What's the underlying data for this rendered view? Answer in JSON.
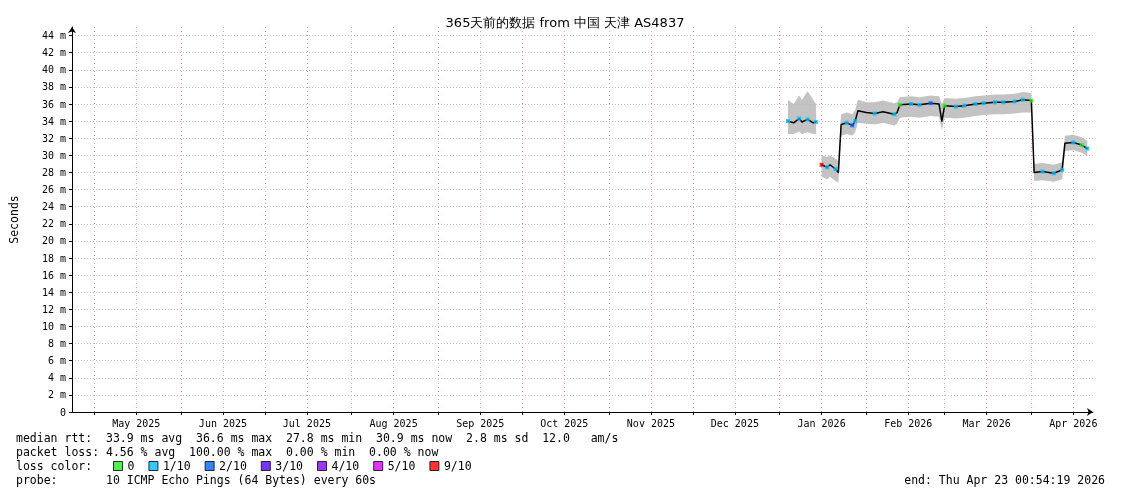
{
  "chart_data": {
    "type": "line",
    "title": "365天前的数据 from 中国 天津 AS4837",
    "ylabel": "Seconds",
    "xlim": [
      "2025-04-23T00:54",
      "2026-04-23T00:54"
    ],
    "xticks": [
      {
        "value": "2025-05-01",
        "label": null
      },
      {
        "value": "2025-05-16",
        "label": "May 2025"
      },
      {
        "value": "2025-06-01",
        "label": null
      },
      {
        "value": "2025-06-16",
        "label": "Jun 2025"
      },
      {
        "value": "2025-07-01",
        "label": null
      },
      {
        "value": "2025-07-16",
        "label": "Jul 2025"
      },
      {
        "value": "2025-08-01",
        "label": null
      },
      {
        "value": "2025-08-16",
        "label": "Aug 2025"
      },
      {
        "value": "2025-09-01",
        "label": null
      },
      {
        "value": "2025-09-16",
        "label": "Sep 2025"
      },
      {
        "value": "2025-10-01",
        "label": null
      },
      {
        "value": "2025-10-16",
        "label": "Oct 2025"
      },
      {
        "value": "2025-11-01",
        "label": null
      },
      {
        "value": "2025-11-16",
        "label": "Nov 2025"
      },
      {
        "value": "2025-12-01",
        "label": null
      },
      {
        "value": "2025-12-16",
        "label": "Dec 2025"
      },
      {
        "value": "2026-01-01",
        "label": null
      },
      {
        "value": "2026-01-16",
        "label": "Jan 2026"
      },
      {
        "value": "2026-02-01",
        "label": null
      },
      {
        "value": "2026-02-16",
        "label": "Feb 2026"
      },
      {
        "value": "2026-03-01",
        "label": null
      },
      {
        "value": "2026-03-16",
        "label": "Mar 2026"
      },
      {
        "value": "2026-04-01",
        "label": null
      },
      {
        "value": "2026-04-16",
        "label": "Apr 2026"
      }
    ],
    "ylim": [
      0,
      45
    ],
    "yticks": [
      0,
      {
        "value": 2,
        "label": "2 m"
      },
      {
        "value": 4,
        "label": "4 m"
      },
      {
        "value": 6,
        "label": "6 m"
      },
      {
        "value": 8,
        "label": "8 m"
      },
      {
        "value": 10,
        "label": "10 m"
      },
      {
        "value": 12,
        "label": "12 m"
      },
      {
        "value": 14,
        "label": "14 m"
      },
      {
        "value": 16,
        "label": "16 m"
      },
      {
        "value": 18,
        "label": "18 m"
      },
      {
        "value": 20,
        "label": "20 m"
      },
      {
        "value": 22,
        "label": "22 m"
      },
      {
        "value": 24,
        "label": "24 m"
      },
      {
        "value": 26,
        "label": "26 m"
      },
      {
        "value": 28,
        "label": "28 m"
      },
      {
        "value": 30,
        "label": "30 m"
      },
      {
        "value": 32,
        "label": "32 m"
      },
      {
        "value": 34,
        "label": "34 m"
      },
      {
        "value": 36,
        "label": "36 m"
      },
      {
        "value": 38,
        "label": "38 m"
      },
      {
        "value": 40,
        "label": "40 m"
      },
      {
        "value": 42,
        "label": "42 m"
      },
      {
        "value": 44,
        "label": "44 m"
      }
    ],
    "grid": true,
    "legend": "bottom left",
    "legend_title": "loss color:",
    "marker": "square",
    "series": [
      {
        "color": "#000000",
        "marker": "none",
        "x": [
          "2026-01-04",
          "2026-01-06",
          "2026-01-08",
          "2026-01-09",
          "2026-01-11",
          "2026-01-13",
          "2026-01-14",
          "2026-01-15",
          "2026-01-16",
          "2026-01-18",
          "2026-01-19",
          "2026-01-21",
          "2026-01-22",
          "2026-01-23",
          "2026-01-25",
          "2026-01-27",
          "2026-01-28",
          "2026-01-29",
          "2026-02-01",
          "2026-02-04",
          "2026-02-07",
          "2026-02-11",
          "2026-02-12",
          "2026-02-13",
          "2026-02-17",
          "2026-02-20",
          "2026-02-24",
          "2026-02-27",
          "2026-02-28",
          "2026-03-01",
          "2026-03-05",
          "2026-03-08",
          "2026-03-12",
          "2026-03-15",
          "2026-03-19",
          "2026-03-22",
          "2026-03-26",
          "2026-03-29",
          "2026-04-01",
          "2026-04-02",
          "2026-04-05",
          "2026-04-09",
          "2026-04-12",
          "2026-04-13",
          "2026-04-16",
          "2026-04-19",
          "2026-04-21"
        ],
        "values": [
          34.0,
          33.8,
          34.3,
          33.9,
          34.2,
          33.8,
          33.9,
          null,
          28.9,
          28.6,
          28.9,
          28.4,
          28.0,
          33.6,
          33.8,
          33.5,
          34.0,
          35.2,
          35.0,
          34.9,
          35.1,
          34.8,
          35.0,
          35.9,
          36.0,
          35.9,
          36.1,
          36.0,
          34.0,
          35.8,
          35.7,
          35.8,
          36.0,
          36.1,
          36.2,
          36.2,
          36.3,
          36.5,
          36.4,
          28.0,
          28.1,
          27.9,
          28.3,
          31.4,
          31.5,
          31.2,
          30.8
        ],
        "lower": [
          32.5,
          32.5,
          32.8,
          32.5,
          32.7,
          32.5,
          32.5,
          null,
          27.5,
          27.2,
          27.5,
          27.0,
          26.8,
          32.3,
          32.5,
          32.3,
          32.7,
          33.8,
          33.7,
          33.6,
          33.8,
          33.5,
          33.7,
          34.4,
          34.5,
          34.4,
          34.6,
          34.5,
          33.0,
          34.4,
          34.3,
          34.4,
          34.6,
          34.7,
          34.8,
          34.8,
          34.9,
          35.0,
          35.0,
          27.0,
          27.1,
          26.9,
          27.2,
          30.5,
          30.6,
          30.3,
          29.9
        ],
        "upper": [
          36.5,
          36.0,
          37.0,
          36.5,
          37.5,
          36.5,
          36.0,
          null,
          30.0,
          29.8,
          30.0,
          29.6,
          29.3,
          34.8,
          35.0,
          34.8,
          35.3,
          36.5,
          36.2,
          36.2,
          36.4,
          36.1,
          36.2,
          36.8,
          36.9,
          36.8,
          37.0,
          36.9,
          36.0,
          36.7,
          36.6,
          36.7,
          36.9,
          37.0,
          37.1,
          37.1,
          37.2,
          37.4,
          37.3,
          29.0,
          29.1,
          28.9,
          29.2,
          32.3,
          32.4,
          32.1,
          31.7
        ]
      },
      {
        "type": "scatter",
        "name": "0",
        "color": "#22ee22",
        "x": [
          "2026-02-13",
          "2026-03-01",
          "2026-04-01",
          "2026-04-19"
        ],
        "values": [
          35.9,
          35.8,
          36.4,
          31.2
        ]
      },
      {
        "type": "scatter",
        "name": "1/10",
        "color": "#00bbff",
        "x": [
          "2026-01-04",
          "2026-01-08",
          "2026-01-11",
          "2026-01-14",
          "2026-01-18",
          "2026-01-21",
          "2026-01-25",
          "2026-01-28",
          "2026-02-04",
          "2026-02-11",
          "2026-02-17",
          "2026-02-20",
          "2026-03-05",
          "2026-03-08",
          "2026-03-12",
          "2026-03-15",
          "2026-03-19",
          "2026-03-22",
          "2026-03-26",
          "2026-03-29",
          "2026-04-05",
          "2026-04-09",
          "2026-04-12",
          "2026-04-16",
          "2026-04-21"
        ],
        "values": [
          34.0,
          34.3,
          34.2,
          33.9,
          28.6,
          28.4,
          33.8,
          34.0,
          34.9,
          34.8,
          36.0,
          35.9,
          35.7,
          35.8,
          36.0,
          36.1,
          36.2,
          36.2,
          36.3,
          36.5,
          28.1,
          27.9,
          28.3,
          31.5,
          30.8
        ]
      },
      {
        "type": "scatter",
        "name": "2/10",
        "color": "#0066ff",
        "x": [
          "2026-01-27",
          "2026-02-24"
        ],
        "values": [
          33.5,
          36.1
        ]
      },
      {
        "type": "scatter",
        "name": "3/10",
        "color": "#5500ff"
      },
      {
        "type": "scatter",
        "name": "4/10",
        "color": "#8800ff"
      },
      {
        "type": "scatter",
        "name": "5/10",
        "color": "#dd00ff"
      },
      {
        "type": "scatter",
        "name": "9/10",
        "color": "#ff0000",
        "x": [
          "2026-01-16"
        ],
        "values": [
          28.9
        ]
      }
    ],
    "annotations": [
      "median rtt:  33.9 ms avg  36.6 ms max  27.8 ms min  30.9 ms now  2.8 ms sd  12.0   am/s",
      "packet loss: 4.56 % avg  100.00 % max  0.00 % min  0.00 % now",
      "probe:       10 ICMP Echo Pings (64 Bytes) every 60s",
      "end: Thu Apr 23 00:54:19 2026"
    ]
  }
}
